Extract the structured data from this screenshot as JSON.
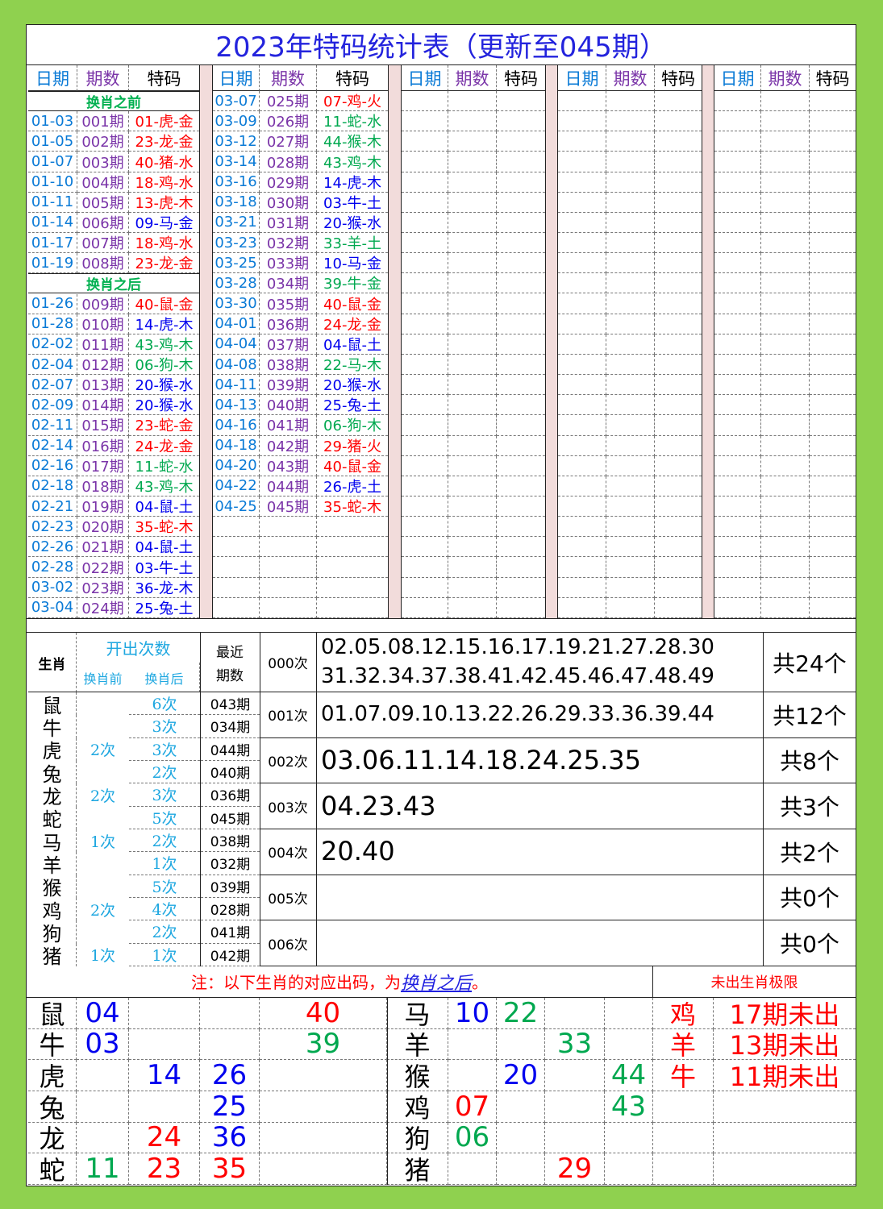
{
  "title": "2023年特码统计表（更新至045期）",
  "headers": [
    "日期",
    "期数",
    "特码"
  ],
  "groups": [
    {
      "rows": [
        {
          "section": "换肖之前"
        },
        {
          "date": "01-03",
          "period": "001期",
          "code": "01-虎-金",
          "color": "#ff0000"
        },
        {
          "date": "01-05",
          "period": "002期",
          "code": "23-龙-金",
          "color": "#ff0000"
        },
        {
          "date": "01-07",
          "period": "003期",
          "code": "40-猪-水",
          "color": "#ff0000"
        },
        {
          "date": "01-10",
          "period": "004期",
          "code": "18-鸡-水",
          "color": "#ff0000"
        },
        {
          "date": "01-11",
          "period": "005期",
          "code": "13-虎-木",
          "color": "#ff0000"
        },
        {
          "date": "01-14",
          "period": "006期",
          "code": "09-马-金",
          "color": "#0000ee"
        },
        {
          "date": "01-17",
          "period": "007期",
          "code": "18-鸡-水",
          "color": "#ff0000"
        },
        {
          "date": "01-19",
          "period": "008期",
          "code": "23-龙-金",
          "color": "#ff0000"
        },
        {
          "section": "换肖之后"
        },
        {
          "date": "01-26",
          "period": "009期",
          "code": "40-鼠-金",
          "color": "#ff0000"
        },
        {
          "date": "01-28",
          "period": "010期",
          "code": "14-虎-木",
          "color": "#0000ee"
        },
        {
          "date": "02-02",
          "period": "011期",
          "code": "43-鸡-木",
          "color": "#00a84f"
        },
        {
          "date": "02-04",
          "period": "012期",
          "code": "06-狗-木",
          "color": "#00a84f"
        },
        {
          "date": "02-07",
          "period": "013期",
          "code": "20-猴-水",
          "color": "#0000ee"
        },
        {
          "date": "02-09",
          "period": "014期",
          "code": "20-猴-水",
          "color": "#0000ee"
        },
        {
          "date": "02-11",
          "period": "015期",
          "code": "23-蛇-金",
          "color": "#ff0000"
        },
        {
          "date": "02-14",
          "period": "016期",
          "code": "24-龙-金",
          "color": "#ff0000"
        },
        {
          "date": "02-16",
          "period": "017期",
          "code": "11-蛇-水",
          "color": "#00a84f"
        },
        {
          "date": "02-18",
          "period": "018期",
          "code": "43-鸡-木",
          "color": "#00a84f"
        },
        {
          "date": "02-21",
          "period": "019期",
          "code": "04-鼠-土",
          "color": "#0000ee"
        },
        {
          "date": "02-23",
          "period": "020期",
          "code": "35-蛇-木",
          "color": "#ff0000"
        },
        {
          "date": "02-26",
          "period": "021期",
          "code": "04-鼠-土",
          "color": "#0000ee"
        },
        {
          "date": "02-28",
          "period": "022期",
          "code": "03-牛-土",
          "color": "#0000ee"
        },
        {
          "date": "03-02",
          "period": "023期",
          "code": "36-龙-木",
          "color": "#0000ee"
        },
        {
          "date": "03-04",
          "period": "024期",
          "code": "25-兔-土",
          "color": "#0000ee"
        }
      ]
    },
    {
      "rows": [
        {
          "date": "03-07",
          "period": "025期",
          "code": "07-鸡-火",
          "color": "#ff0000"
        },
        {
          "date": "03-09",
          "period": "026期",
          "code": "11-蛇-水",
          "color": "#00a84f"
        },
        {
          "date": "03-12",
          "period": "027期",
          "code": "44-猴-木",
          "color": "#00a84f"
        },
        {
          "date": "03-14",
          "period": "028期",
          "code": "43-鸡-木",
          "color": "#00a84f"
        },
        {
          "date": "03-16",
          "period": "029期",
          "code": "14-虎-木",
          "color": "#0000ee"
        },
        {
          "date": "03-18",
          "period": "030期",
          "code": "03-牛-土",
          "color": "#0000ee"
        },
        {
          "date": "03-21",
          "period": "031期",
          "code": "20-猴-水",
          "color": "#0000ee"
        },
        {
          "date": "03-23",
          "period": "032期",
          "code": "33-羊-土",
          "color": "#00a84f"
        },
        {
          "date": "03-25",
          "period": "033期",
          "code": "10-马-金",
          "color": "#0000ee"
        },
        {
          "date": "03-28",
          "period": "034期",
          "code": "39-牛-金",
          "color": "#00a84f"
        },
        {
          "date": "03-30",
          "period": "035期",
          "code": "40-鼠-金",
          "color": "#ff0000"
        },
        {
          "date": "04-01",
          "period": "036期",
          "code": "24-龙-金",
          "color": "#ff0000"
        },
        {
          "date": "04-04",
          "period": "037期",
          "code": "04-鼠-土",
          "color": "#0000ee"
        },
        {
          "date": "04-08",
          "period": "038期",
          "code": "22-马-木",
          "color": "#00a84f"
        },
        {
          "date": "04-11",
          "period": "039期",
          "code": "20-猴-水",
          "color": "#0000ee"
        },
        {
          "date": "04-13",
          "period": "040期",
          "code": "25-兔-土",
          "color": "#0000ee"
        },
        {
          "date": "04-16",
          "period": "041期",
          "code": "06-狗-木",
          "color": "#00a84f"
        },
        {
          "date": "04-18",
          "period": "042期",
          "code": "29-猪-火",
          "color": "#ff0000"
        },
        {
          "date": "04-20",
          "period": "043期",
          "code": "40-鼠-金",
          "color": "#ff0000"
        },
        {
          "date": "04-22",
          "period": "044期",
          "code": "26-虎-土",
          "color": "#0000ee"
        },
        {
          "date": "04-25",
          "period": "045期",
          "code": "35-蛇-木",
          "color": "#ff0000"
        }
      ]
    },
    {
      "rows": []
    },
    {
      "rows": []
    },
    {
      "rows": []
    }
  ],
  "stats": {
    "header": {
      "zodiac": "生肖",
      "count": "开出次数",
      "before": "换肖前",
      "after": "换肖后",
      "recent": [
        "最近",
        "期数"
      ]
    },
    "zodiac_rows": [
      {
        "zodiac": "鼠",
        "before": null,
        "after": "6次",
        "recent": "043期"
      },
      {
        "zodiac": "牛",
        "before": null,
        "after": "3次",
        "recent": "034期"
      },
      {
        "zodiac": "虎",
        "before": "2次",
        "after": "3次",
        "recent": "044期"
      },
      {
        "zodiac": "兔",
        "before": null,
        "after": "2次",
        "recent": "040期"
      },
      {
        "zodiac": "龙",
        "before": "2次",
        "after": "3次",
        "recent": "036期"
      },
      {
        "zodiac": "蛇",
        "before": null,
        "after": "5次",
        "recent": "045期"
      },
      {
        "zodiac": "马",
        "before": "1次",
        "after": "2次",
        "recent": "038期"
      },
      {
        "zodiac": "羊",
        "before": null,
        "after": "1次",
        "recent": "032期"
      },
      {
        "zodiac": "猴",
        "before": null,
        "after": "5次",
        "recent": "039期"
      },
      {
        "zodiac": "鸡",
        "before": "2次",
        "after": "4次",
        "recent": "028期"
      },
      {
        "zodiac": "狗",
        "before": null,
        "after": "2次",
        "recent": "041期"
      },
      {
        "zodiac": "猪",
        "before": "1次",
        "after": "1次",
        "recent": "042期"
      }
    ],
    "freq_rows": [
      {
        "label": "000次",
        "lines": [
          "02.05.08.12.15.16.17.19.21.27.28.30",
          "31.32.34.37.38.41.42.45.46.47.48.49"
        ],
        "total": "共24个"
      },
      {
        "label": "001次",
        "lines": [
          "01.07.09.10.13.22.26.29.33.36.39.44"
        ],
        "total": "共12个"
      },
      {
        "label": "002次",
        "lines": [
          "03.06.11.14.18.24.25.35"
        ],
        "total": "共8个"
      },
      {
        "label": "003次",
        "lines": [
          "04.23.43"
        ],
        "total": "共3个"
      },
      {
        "label": "004次",
        "lines": [
          "20.40"
        ],
        "total": "共2个"
      },
      {
        "label": "005次",
        "lines": [],
        "total": "共0个"
      },
      {
        "label": "006次",
        "lines": [],
        "total": "共0个"
      }
    ]
  },
  "note": {
    "parts": [
      "注：以下生肖的对应出码，为",
      "换肖之后",
      "。"
    ],
    "right": "未出生肖极限"
  },
  "grid": {
    "left": [
      {
        "zodiac": "鼠",
        "cells": [
          {
            "n": "04",
            "color": "#0000ee"
          },
          null,
          null,
          {
            "n": "40",
            "color": "#ff0000"
          }
        ]
      },
      {
        "zodiac": "牛",
        "cells": [
          {
            "n": "03",
            "color": "#0000ee"
          },
          null,
          null,
          {
            "n": "39",
            "color": "#00a84f"
          }
        ]
      },
      {
        "zodiac": "虎",
        "cells": [
          null,
          {
            "n": "14",
            "color": "#0000ee"
          },
          {
            "n": "26",
            "color": "#0000ee"
          },
          null
        ]
      },
      {
        "zodiac": "兔",
        "cells": [
          null,
          null,
          {
            "n": "25",
            "color": "#0000ee"
          },
          null
        ]
      },
      {
        "zodiac": "龙",
        "cells": [
          null,
          {
            "n": "24",
            "color": "#ff0000"
          },
          {
            "n": "36",
            "color": "#0000ee"
          },
          null
        ]
      },
      {
        "zodiac": "蛇",
        "cells": [
          {
            "n": "11",
            "color": "#00a84f"
          },
          {
            "n": "23",
            "color": "#ff0000"
          },
          {
            "n": "35",
            "color": "#ff0000"
          },
          null
        ]
      }
    ],
    "right": [
      {
        "zodiac": "马",
        "cells": [
          {
            "n": "10",
            "color": "#0000ee"
          },
          {
            "n": "22",
            "color": "#00a84f"
          },
          null,
          null
        ]
      },
      {
        "zodiac": "羊",
        "cells": [
          null,
          null,
          {
            "n": "33",
            "color": "#00a84f"
          },
          null
        ]
      },
      {
        "zodiac": "猴",
        "cells": [
          null,
          {
            "n": "20",
            "color": "#0000ee"
          },
          null,
          {
            "n": "44",
            "color": "#00a84f"
          }
        ]
      },
      {
        "zodiac": "鸡",
        "cells": [
          {
            "n": "07",
            "color": "#ff0000"
          },
          null,
          null,
          {
            "n": "43",
            "color": "#00a84f"
          }
        ]
      },
      {
        "zodiac": "狗",
        "cells": [
          {
            "n": "06",
            "color": "#00a84f"
          },
          null,
          null,
          null
        ]
      },
      {
        "zodiac": "猪",
        "cells": [
          null,
          null,
          {
            "n": "29",
            "color": "#ff0000"
          },
          null
        ]
      }
    ],
    "limits": [
      {
        "zodiac": "鸡",
        "text": "17期未出"
      },
      {
        "zodiac": "羊",
        "text": "13期未出"
      },
      {
        "zodiac": "牛",
        "text": "11期未出"
      }
    ]
  }
}
